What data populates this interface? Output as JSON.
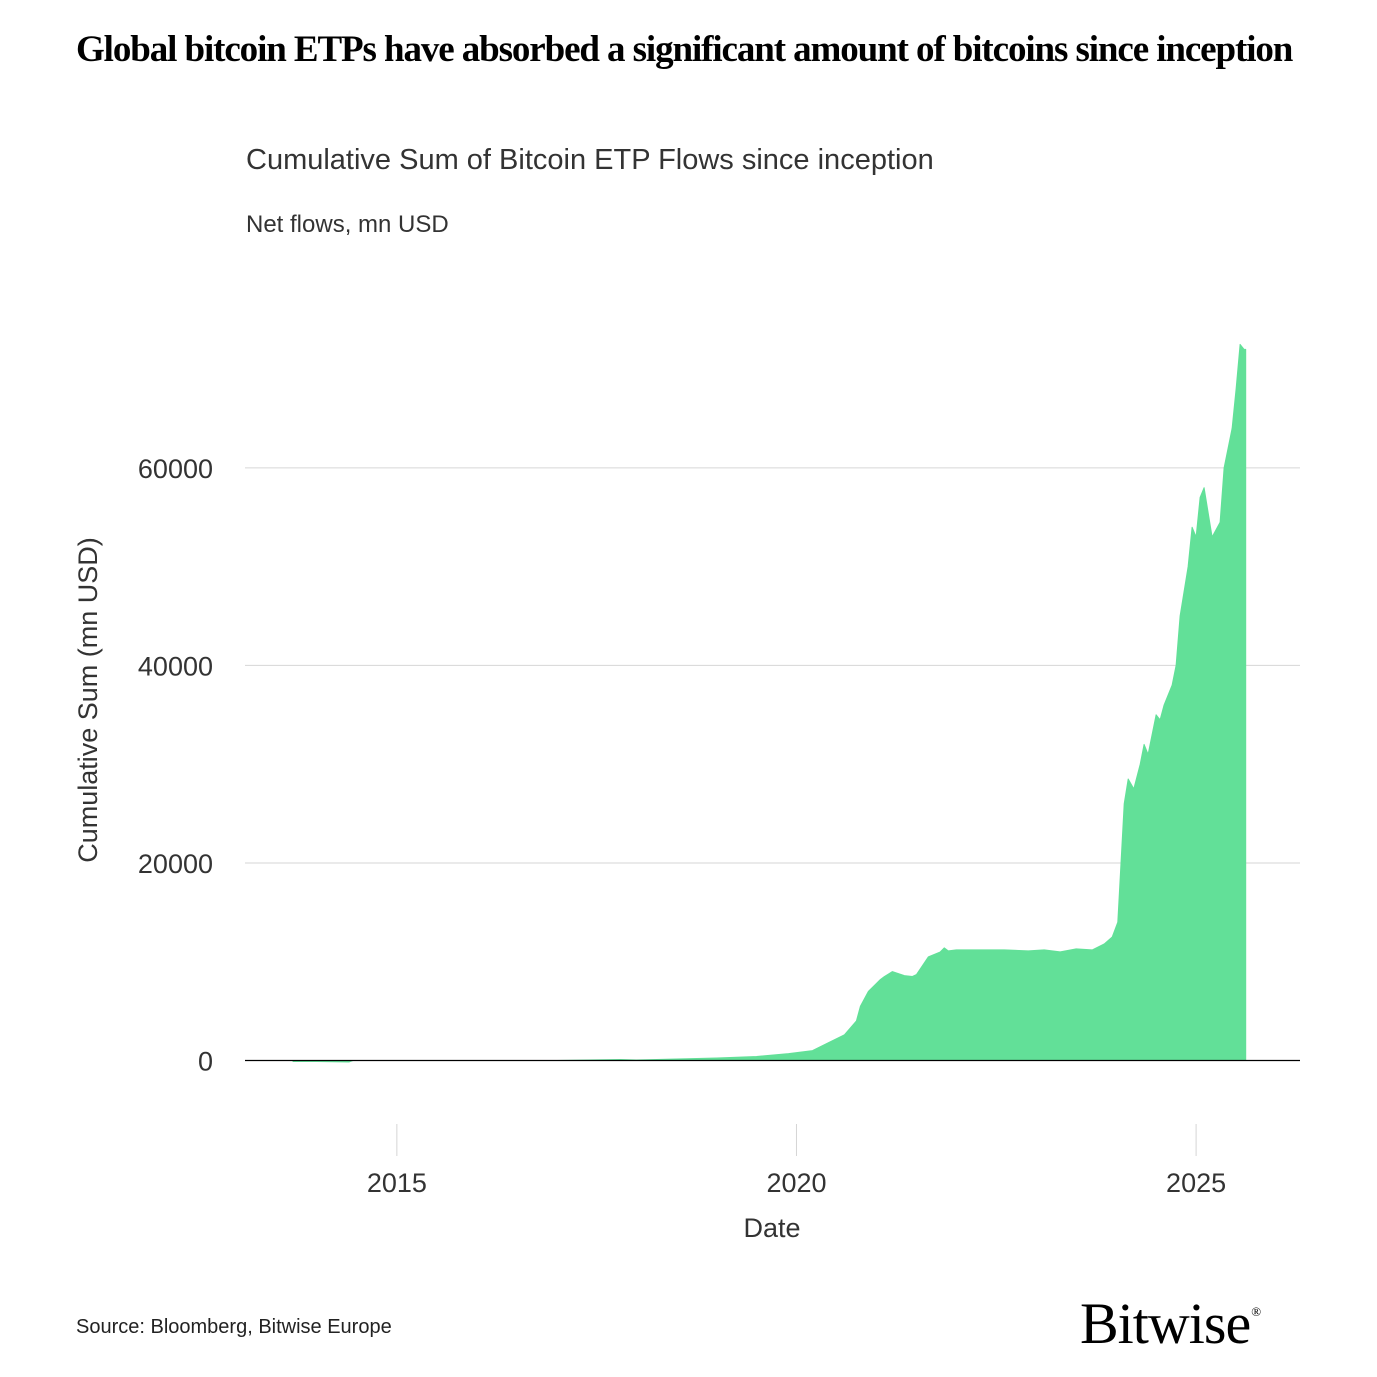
{
  "headline": "Global bitcoin ETPs have absorbed a significant amount of bitcoins since inception",
  "source": "Source: Bloomberg, Bitwise Europe",
  "logo": {
    "text": "Bitwise",
    "mark": "®"
  },
  "colors": {
    "area": "#62e098",
    "grid": "#d6d6d6",
    "axis": "#000000",
    "text": "#333333"
  },
  "chart_data": {
    "type": "area",
    "title": "Cumulative Sum of Bitcoin ETP Flows since inception",
    "subtitle": "Net flows, mn USD",
    "xlabel": "Date",
    "ylabel": "Cumulative Sum (mn USD)",
    "xlim": [
      2013.1,
      2026.3
    ],
    "ylim": [
      -4000,
      77000
    ],
    "yticks": [
      0,
      20000,
      40000,
      60000
    ],
    "ytick_labels": [
      "0",
      "20000",
      "40000",
      "60000"
    ],
    "xticks": [
      2015,
      2020,
      2025
    ],
    "xtick_labels": [
      "2015",
      "2020",
      "2025"
    ],
    "grid": "horizontal",
    "series": [
      {
        "name": "Cumulative Sum of Bitcoin ETP Flows",
        "x": [
          2013.7,
          2014.0,
          2014.4,
          2014.45,
          2017.0,
          2017.8,
          2018.0,
          2018.5,
          2019.0,
          2019.5,
          2019.9,
          2020.2,
          2020.4,
          2020.6,
          2020.75,
          2020.8,
          2020.9,
          2021.0,
          2021.05,
          2021.1,
          2021.2,
          2021.35,
          2021.45,
          2021.5,
          2021.65,
          2021.8,
          2021.85,
          2021.9,
          2022.0,
          2022.3,
          2022.6,
          2022.9,
          2023.1,
          2023.3,
          2023.5,
          2023.7,
          2023.85,
          2023.95,
          2024.02,
          2024.06,
          2024.1,
          2024.15,
          2024.22,
          2024.3,
          2024.35,
          2024.4,
          2024.5,
          2024.55,
          2024.6,
          2024.7,
          2024.75,
          2024.8,
          2024.9,
          2024.95,
          2025.0,
          2025.05,
          2025.1,
          2025.2,
          2025.3,
          2025.35,
          2025.4,
          2025.45,
          2025.5,
          2025.55,
          2025.6,
          2025.62
        ],
        "y": [
          -100,
          -100,
          -150,
          0,
          0,
          100,
          50,
          150,
          250,
          400,
          700,
          1000,
          1800,
          2600,
          4000,
          5500,
          7000,
          7800,
          8200,
          8500,
          9000,
          8600,
          8500,
          8700,
          10500,
          11000,
          11400,
          11100,
          11200,
          11200,
          11200,
          11100,
          11200,
          11000,
          11300,
          11200,
          11800,
          12500,
          14000,
          20000,
          26000,
          28500,
          27500,
          30000,
          32000,
          31000,
          35000,
          34500,
          36000,
          38000,
          40000,
          45000,
          50000,
          54000,
          53000,
          57000,
          58000,
          53000,
          54500,
          60000,
          62000,
          64000,
          68000,
          72500,
          72000,
          72000
        ]
      }
    ]
  }
}
